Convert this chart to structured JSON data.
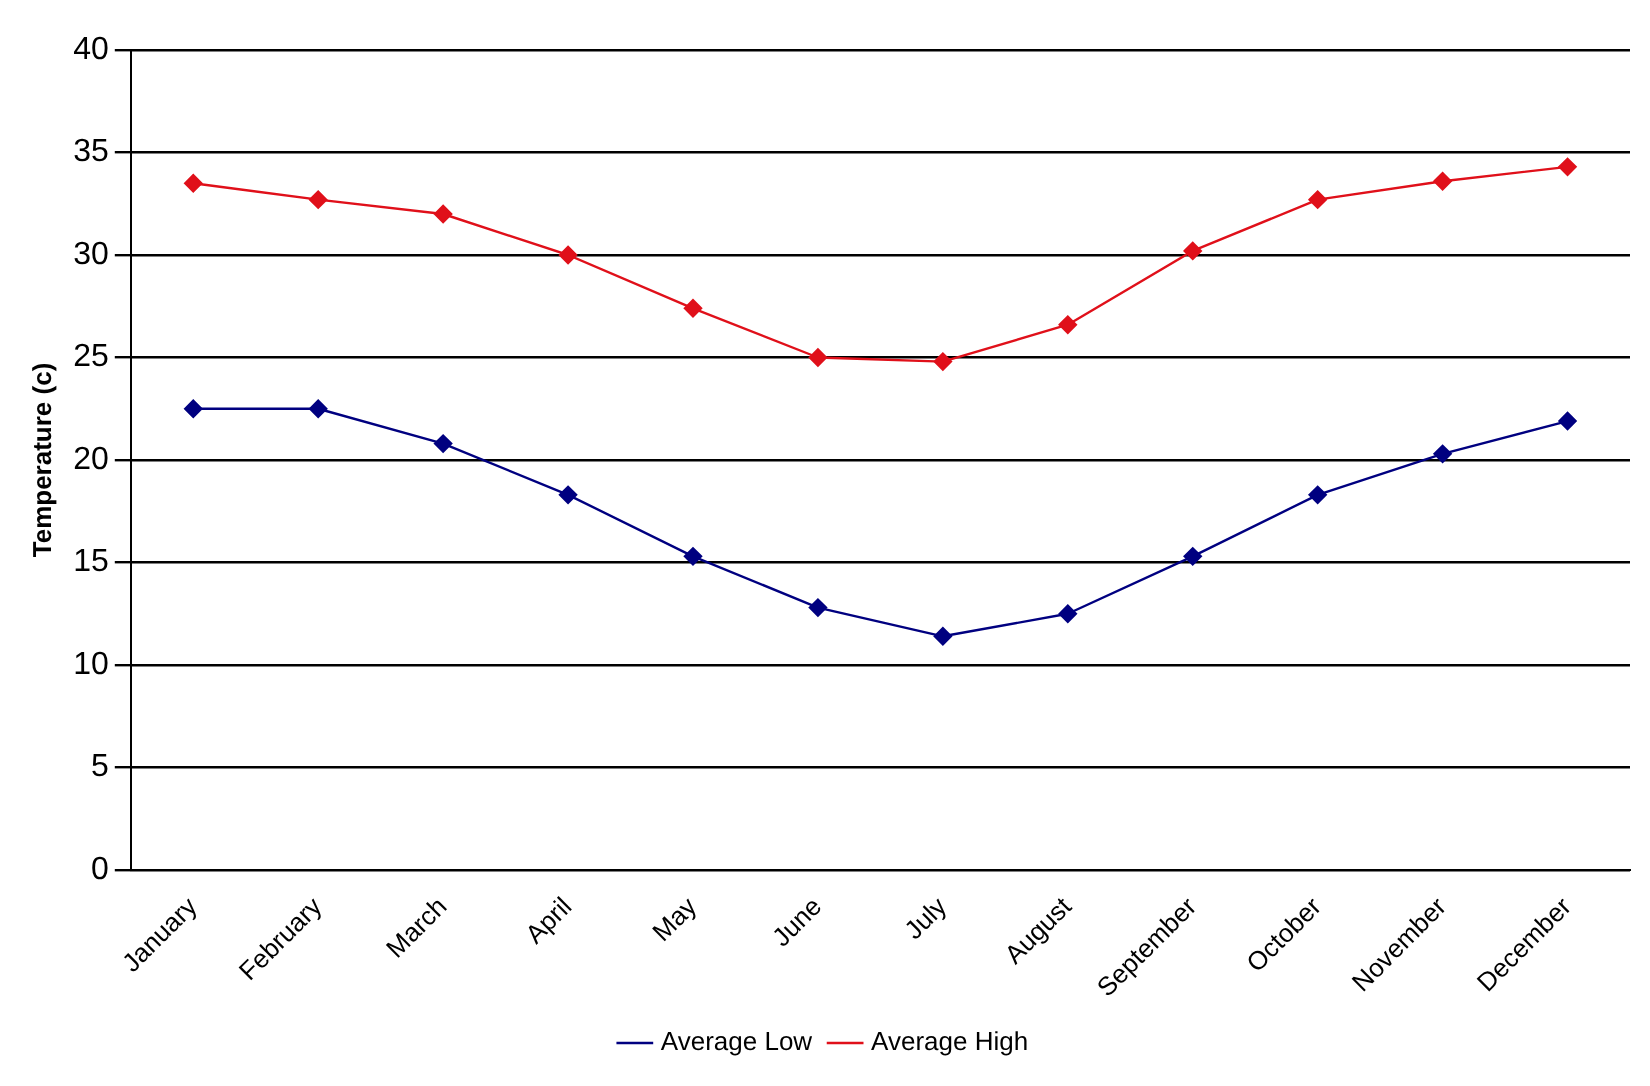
{
  "chart_data": {
    "type": "line",
    "ylabel": "Temperature (c)",
    "categories": [
      "January",
      "February",
      "March",
      "April",
      "May",
      "June",
      "July",
      "August",
      "September",
      "October",
      "November",
      "December"
    ],
    "series": [
      {
        "name": "Average Low",
        "color": "#000080",
        "values": [
          22.5,
          22.5,
          20.8,
          18.3,
          15.3,
          12.8,
          11.4,
          12.5,
          15.3,
          18.3,
          20.3,
          21.9
        ]
      },
      {
        "name": "Average High",
        "color": "#e0101a",
        "values": [
          33.5,
          32.7,
          32.0,
          30.0,
          27.4,
          25.0,
          24.8,
          26.6,
          30.2,
          32.7,
          33.6,
          34.3
        ]
      }
    ],
    "ylim": [
      0,
      40
    ],
    "yticks": [
      0,
      5,
      10,
      15,
      20,
      25,
      30,
      35,
      40
    ],
    "grid": "y",
    "legend": "bottom",
    "marker": "diamond",
    "line_style": "solid"
  }
}
